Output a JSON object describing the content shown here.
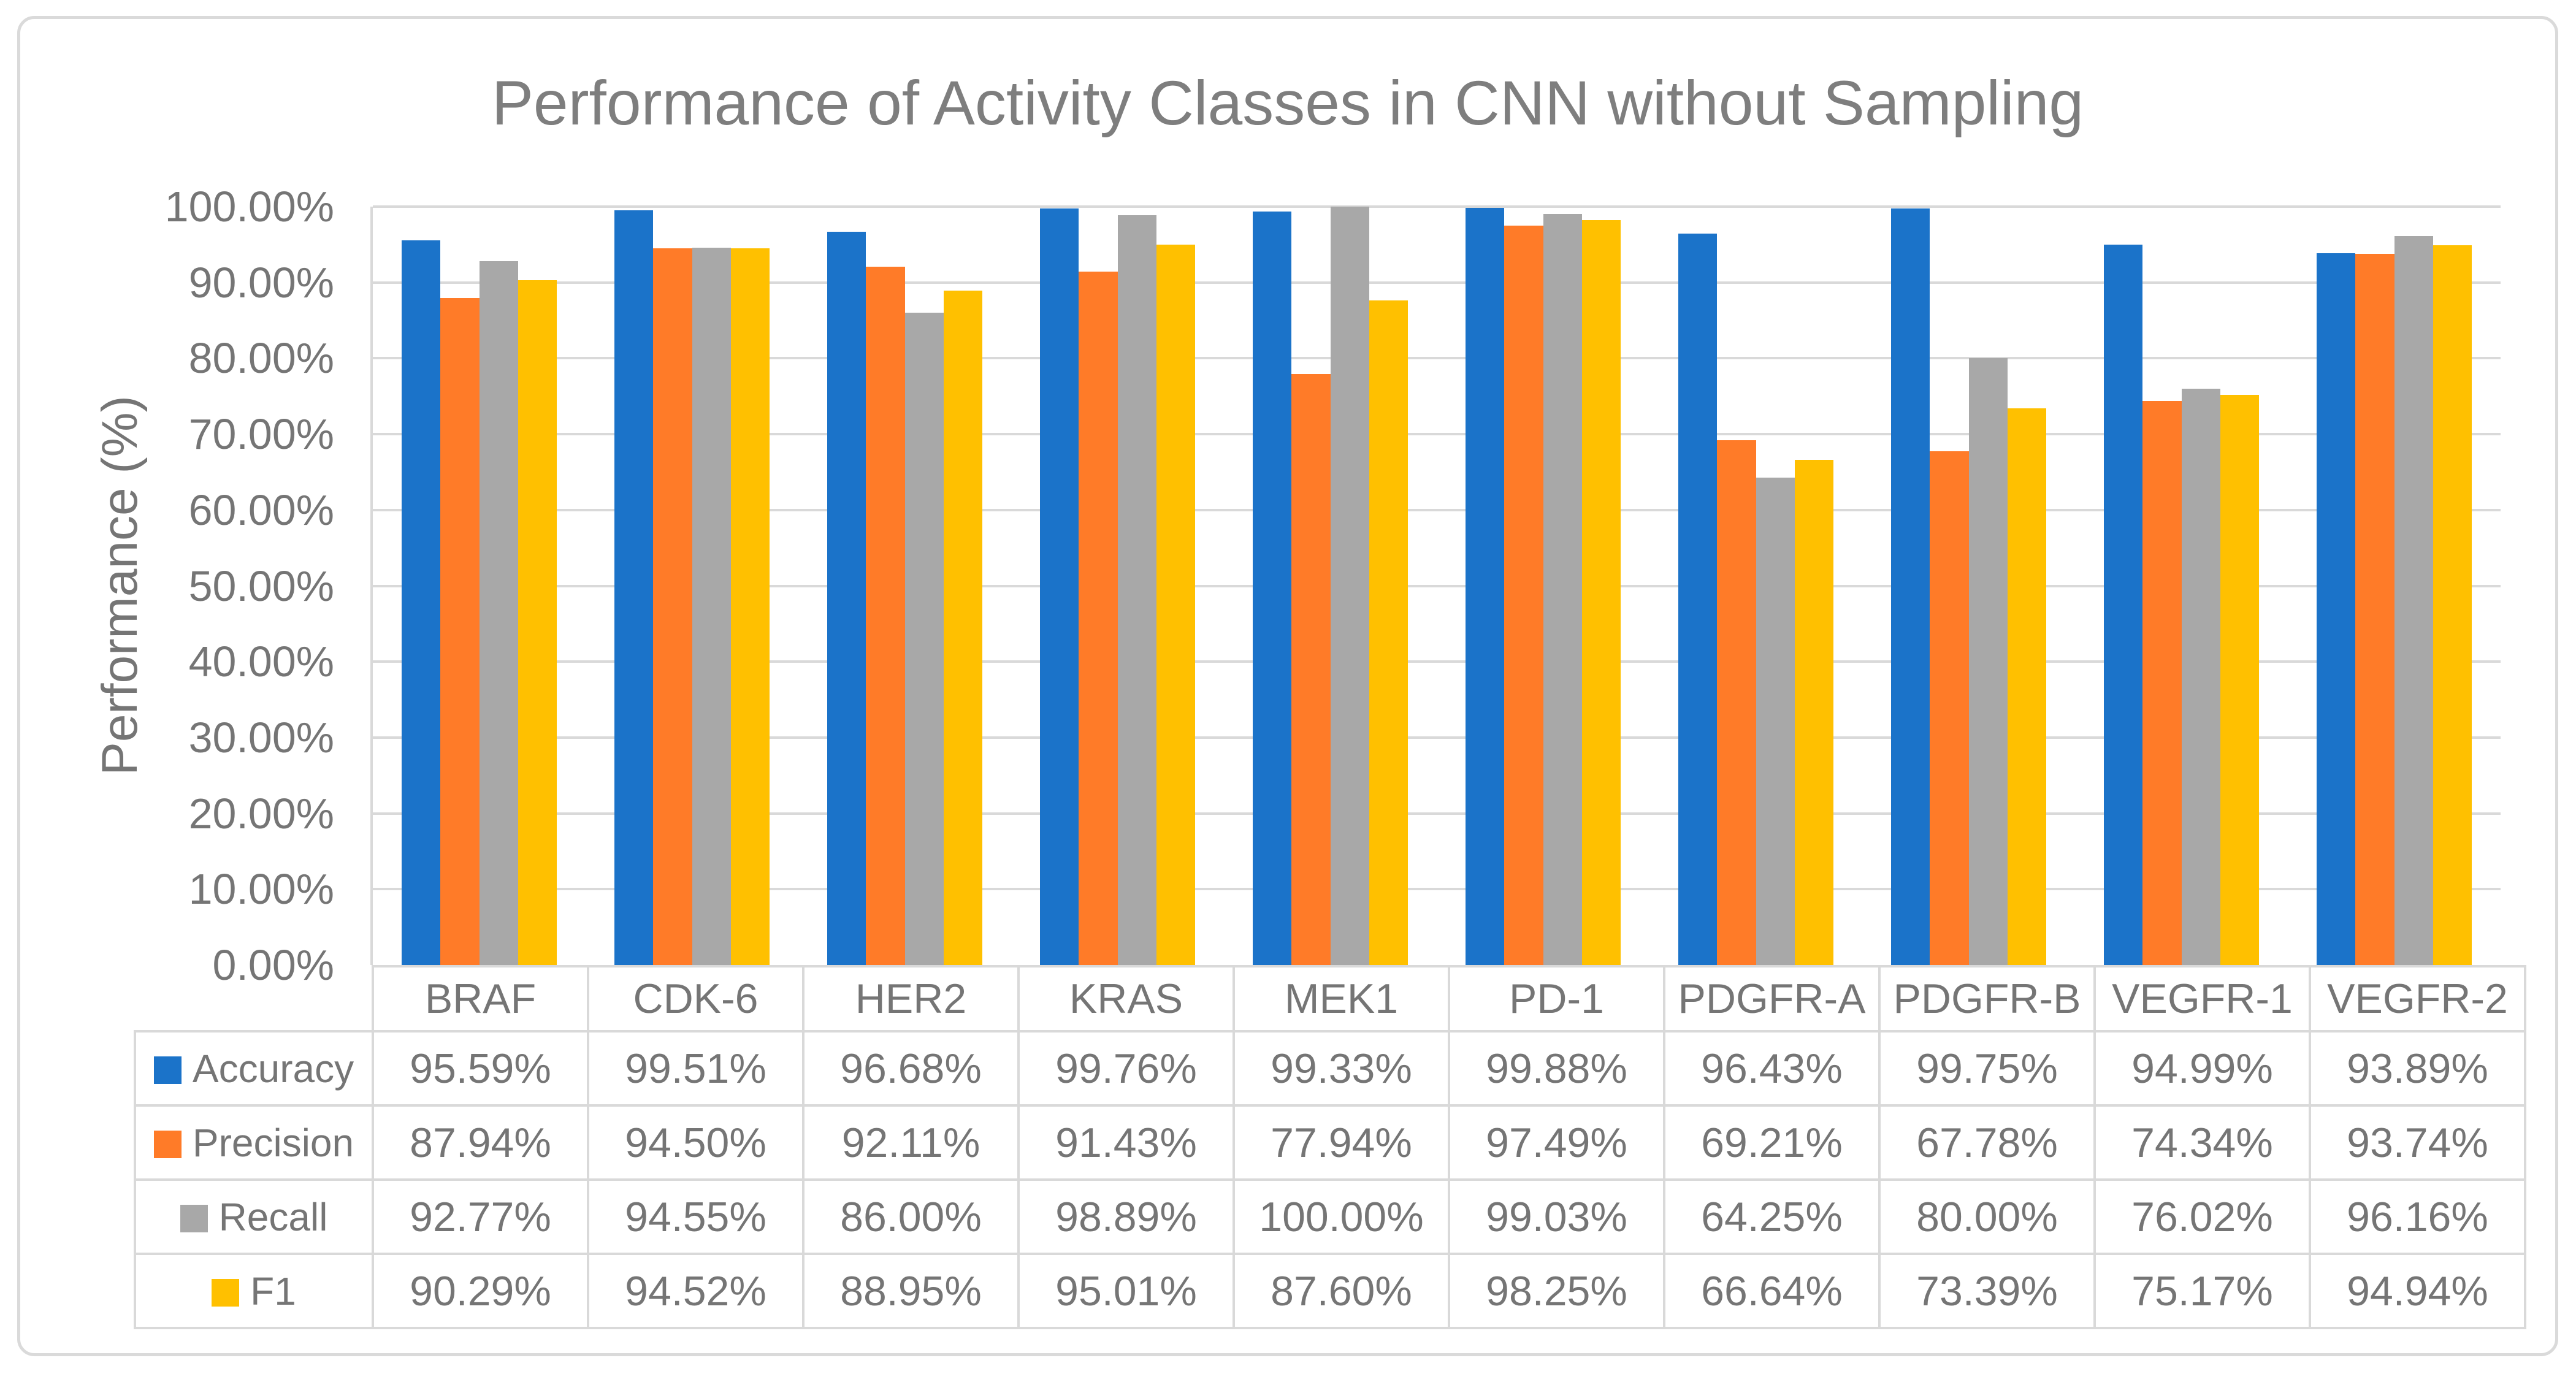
{
  "window": {
    "background": "#FFFFFF",
    "card_border_color": "#DADADA"
  },
  "chart_data": {
    "type": "bar",
    "title": "Performance of Activity Classes in CNN without Sampling",
    "xlabel": "",
    "ylabel": "Performance (%)",
    "ylim": [
      0,
      100
    ],
    "y_tick_step": 10,
    "y_tick_labels": [
      "0.00%",
      "10.00%",
      "20.00%",
      "30.00%",
      "40.00%",
      "50.00%",
      "60.00%",
      "70.00%",
      "80.00%",
      "90.00%",
      "100.00%"
    ],
    "grid": true,
    "gridline_color": "#D9D9D9",
    "axis_line_color": "#D9D9D9",
    "legend_position": "data-table-left-column",
    "bar_gap_width_percent": 150,
    "series_overlap_percent": 0,
    "value_format": "percent_2dp",
    "categories": [
      "BRAF",
      "CDK-6",
      "HER2",
      "KRAS",
      "MEK1",
      "PD-1",
      "PDGFR-A",
      "PDGFR-B",
      "VEGFR-1",
      "VEGFR-2"
    ],
    "series": [
      {
        "name": "Accuracy",
        "color": "#1B73C9",
        "values": [
          95.59,
          99.51,
          96.68,
          99.76,
          99.33,
          99.88,
          96.43,
          99.75,
          94.99,
          93.89
        ]
      },
      {
        "name": "Precision",
        "color": "#FF7B28",
        "values": [
          87.94,
          94.5,
          92.11,
          91.43,
          77.94,
          97.49,
          69.21,
          67.78,
          74.34,
          93.74
        ]
      },
      {
        "name": "Recall",
        "color": "#A8A8A8",
        "values": [
          92.77,
          94.55,
          86.0,
          98.89,
          100.0,
          99.03,
          64.25,
          80.0,
          76.02,
          96.16
        ]
      },
      {
        "name": "F1",
        "color": "#FFC000",
        "values": [
          90.29,
          94.52,
          88.95,
          95.01,
          87.6,
          98.25,
          66.64,
          73.39,
          75.17,
          94.94
        ]
      }
    ]
  },
  "text_colors": {
    "title": "#7E7E7E",
    "axis_labels": "#757575",
    "table_text": "#757575"
  }
}
